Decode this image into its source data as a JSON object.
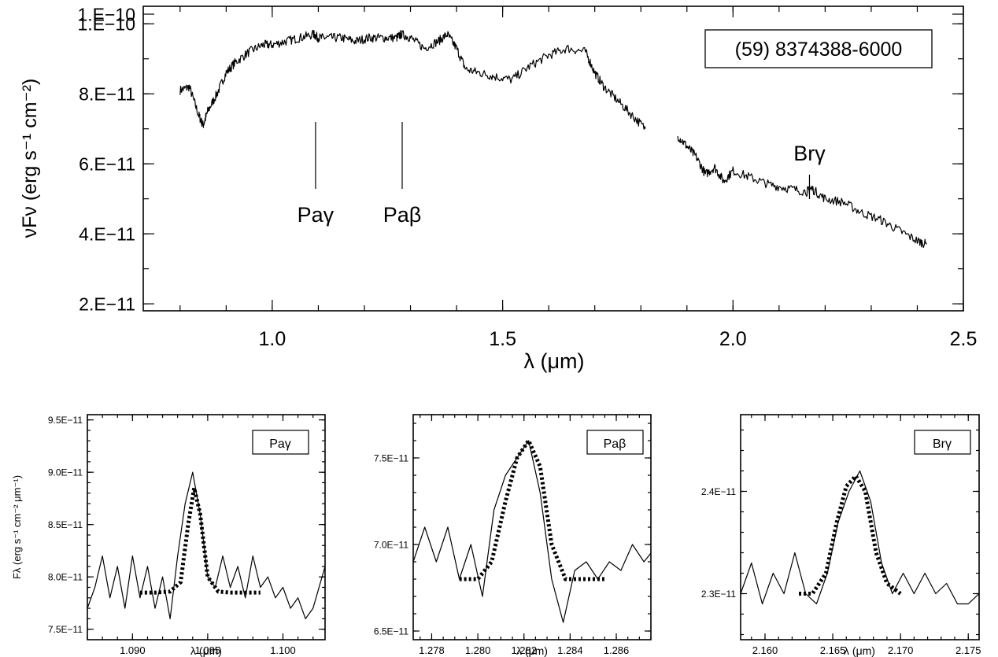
{
  "chart_data": [
    {
      "type": "line",
      "title": "",
      "legend_box": "(59) 8374388-6000",
      "legend_placement": "top-right",
      "xlabel": "λ (μm)",
      "ylabel": "νFν (erg s⁻¹ cm⁻²)",
      "xlim": [
        0.72,
        2.5
      ],
      "ylim": [
        1.8e-11,
        1.05e-10
      ],
      "xticks": [
        1.0,
        1.5,
        2.0,
        2.5
      ],
      "xtick_labels": [
        "1.0",
        "1.5",
        "2.0",
        "2.5"
      ],
      "yticks": [
        2e-11,
        4e-11,
        6e-11,
        8e-11,
        1e-10,
        1.2e-10
      ],
      "ytick_labels": [
        "2.E−11",
        "4.E−11",
        "6.E−11",
        "8.E−11",
        "1.E−10",
        "1.E−10"
      ],
      "annotations": [
        {
          "label": "Paγ",
          "x": 1.094
        },
        {
          "label": "Paβ",
          "x": 1.282
        },
        {
          "label": "Brγ",
          "x": 2.166
        }
      ],
      "series": [
        {
          "segments": [
            {
              "x": [
                0.8,
                0.82,
                0.84,
                0.85,
                0.86,
                0.88,
                0.9,
                0.92,
                0.95,
                0.98,
                1.0,
                1.03,
                1.06,
                1.09,
                1.1,
                1.12,
                1.15,
                1.18,
                1.21,
                1.24,
                1.27,
                1.28,
                1.3,
                1.33,
                1.36,
                1.38,
                1.4,
                1.42,
                1.45,
                1.48,
                1.52,
                1.56,
                1.6,
                1.64,
                1.68,
                1.7,
                1.72,
                1.75,
                1.78,
                1.81
              ],
              "y": [
                8.1e-11,
                8.2e-11,
                7.4e-11,
                7.1e-11,
                7.5e-11,
                8e-11,
                8.6e-11,
                8.9e-11,
                9.2e-11,
                9.4e-11,
                9.4e-11,
                9.5e-11,
                9.6e-11,
                9.7e-11,
                9.6e-11,
                9.6e-11,
                9.6e-11,
                9.5e-11,
                9.6e-11,
                9.6e-11,
                9.6e-11,
                9.7e-11,
                9.6e-11,
                9.3e-11,
                9.5e-11,
                9.7e-11,
                9.3e-11,
                8.7e-11,
                8.6e-11,
                8.5e-11,
                8.4e-11,
                8.8e-11,
                9.1e-11,
                9.3e-11,
                9.2e-11,
                8.6e-11,
                8.2e-11,
                7.8e-11,
                7.4e-11,
                7e-11
              ]
            },
            {
              "x": [
                1.88,
                1.9,
                1.92,
                1.94,
                1.96,
                1.98,
                2.0,
                2.04,
                2.08,
                2.12,
                2.16,
                2.17,
                2.2,
                2.24,
                2.28,
                2.32,
                2.36,
                2.4,
                2.42
              ],
              "y": [
                6.8e-11,
                6.5e-11,
                6.2e-11,
                5.7e-11,
                5.9e-11,
                5.5e-11,
                5.8e-11,
                5.6e-11,
                5.4e-11,
                5.3e-11,
                5.2e-11,
                5.3e-11,
                5e-11,
                4.9e-11,
                4.6e-11,
                4.4e-11,
                4.1e-11,
                3.8e-11,
                3.7e-11
              ]
            }
          ]
        }
      ]
    },
    {
      "type": "line",
      "label": "Paγ",
      "legend_placement": "top-right",
      "xlabel": "λ (μm)",
      "ylabel": "Fλ (erg s⁻¹ cm⁻² μm⁻¹)",
      "xlim": [
        1.087,
        1.1028
      ],
      "ylim": [
        7.4e-11,
        9.55e-11
      ],
      "xticks": [
        1.09,
        1.095,
        1.1
      ],
      "xtick_labels": [
        "1.090",
        "1.095",
        "1.100"
      ],
      "yticks": [
        7.5e-11,
        8e-11,
        8.5e-11,
        9e-11,
        9.5e-11
      ],
      "ytick_labels": [
        "7.5E−11",
        "8.0E−11",
        "8.5E−11",
        "9.0E−11",
        "9.5E−11"
      ],
      "series": [
        {
          "style": "solid",
          "x": [
            1.087,
            1.0875,
            1.088,
            1.0885,
            1.089,
            1.0895,
            1.09,
            1.0905,
            1.091,
            1.0915,
            1.092,
            1.0925,
            1.093,
            1.0935,
            1.094,
            1.0945,
            1.095,
            1.0955,
            1.096,
            1.0965,
            1.097,
            1.0975,
            1.098,
            1.0985,
            1.099,
            1.0995,
            1.1,
            1.1005,
            1.101,
            1.1015,
            1.102,
            1.1028
          ],
          "y": [
            7.7e-11,
            7.9e-11,
            8.2e-11,
            7.8e-11,
            8.1e-11,
            7.7e-11,
            8.2e-11,
            7.8e-11,
            8.1e-11,
            7.7e-11,
            8e-11,
            7.6e-11,
            8.2e-11,
            8.7e-11,
            9e-11,
            8.6e-11,
            8e-11,
            7.9e-11,
            8.2e-11,
            7.9e-11,
            8.1e-11,
            7.8e-11,
            8.2e-11,
            7.9e-11,
            8e-11,
            7.8e-11,
            7.9e-11,
            7.7e-11,
            7.8e-11,
            7.6e-11,
            7.7e-11,
            8.1e-11
          ]
        },
        {
          "style": "dotted",
          "x": [
            1.0905,
            1.0915,
            1.0925,
            1.0932,
            1.0937,
            1.0941,
            1.0945,
            1.095,
            1.0957,
            1.0965,
            1.0975,
            1.0985
          ],
          "y": [
            7.85e-11,
            7.85e-11,
            7.86e-11,
            7.95e-11,
            8.5e-11,
            8.85e-11,
            8.6e-11,
            8e-11,
            7.86e-11,
            7.85e-11,
            7.85e-11,
            7.85e-11
          ]
        }
      ]
    },
    {
      "type": "line",
      "label": "Paβ",
      "legend_placement": "top-right",
      "xlabel": "λ (μm)",
      "xlim": [
        1.2772,
        1.2875
      ],
      "ylim": [
        6.45e-11,
        7.75e-11
      ],
      "xticks": [
        1.278,
        1.28,
        1.282,
        1.284,
        1.286
      ],
      "xtick_labels": [
        "1.278",
        "1.280",
        "1.282",
        "1.284",
        "1.286"
      ],
      "yticks": [
        6.5e-11,
        7e-11,
        7.5e-11
      ],
      "ytick_labels": [
        "6.5E−11",
        "7.0E−11",
        "7.5E−11"
      ],
      "series": [
        {
          "style": "solid",
          "x": [
            1.2772,
            1.2777,
            1.2782,
            1.2787,
            1.2792,
            1.2797,
            1.2802,
            1.2807,
            1.2812,
            1.2817,
            1.2822,
            1.2827,
            1.2832,
            1.2837,
            1.2842,
            1.2847,
            1.2852,
            1.2857,
            1.2862,
            1.2867,
            1.2872,
            1.2875
          ],
          "y": [
            6.9e-11,
            7.1e-11,
            6.9e-11,
            7.1e-11,
            6.8e-11,
            7e-11,
            6.7e-11,
            7.2e-11,
            7.4e-11,
            7.5e-11,
            7.6e-11,
            7.3e-11,
            6.8e-11,
            6.55e-11,
            6.85e-11,
            6.9e-11,
            6.8e-11,
            6.9e-11,
            6.85e-11,
            7e-11,
            6.9e-11,
            6.95e-11
          ]
        },
        {
          "style": "dotted",
          "x": [
            1.2792,
            1.28,
            1.2806,
            1.2812,
            1.2817,
            1.2822,
            1.2827,
            1.2832,
            1.2838,
            1.2845,
            1.2855
          ],
          "y": [
            6.8e-11,
            6.8e-11,
            6.9e-11,
            7.25e-11,
            7.5e-11,
            7.6e-11,
            7.45e-11,
            7e-11,
            6.8e-11,
            6.8e-11,
            6.8e-11
          ]
        }
      ]
    },
    {
      "type": "line",
      "label": "Brγ",
      "legend_placement": "top-right",
      "xlabel": "λ (μm)",
      "xlim": [
        2.1582,
        2.1758
      ],
      "ylim": [
        2.255e-11,
        2.475e-11
      ],
      "xticks": [
        2.16,
        2.165,
        2.17,
        2.175
      ],
      "xtick_labels": [
        "2.160",
        "2.165",
        "2.170",
        "2.175"
      ],
      "yticks": [
        2.3e-11,
        2.4e-11
      ],
      "ytick_labels": [
        "2.3E−11",
        "2.4E−11"
      ],
      "series": [
        {
          "style": "solid",
          "x": [
            2.1582,
            2.159,
            2.1598,
            2.1606,
            2.1614,
            2.1622,
            2.163,
            2.1638,
            2.1646,
            2.1654,
            2.1662,
            2.167,
            2.1678,
            2.1686,
            2.1694,
            2.1702,
            2.171,
            2.1718,
            2.1726,
            2.1734,
            2.1742,
            2.175,
            2.1758
          ],
          "y": [
            2.3e-11,
            2.33e-11,
            2.29e-11,
            2.32e-11,
            2.3e-11,
            2.34e-11,
            2.3e-11,
            2.29e-11,
            2.32e-11,
            2.37e-11,
            2.4e-11,
            2.42e-11,
            2.39e-11,
            2.33e-11,
            2.3e-11,
            2.32e-11,
            2.3e-11,
            2.32e-11,
            2.3e-11,
            2.31e-11,
            2.29e-11,
            2.29e-11,
            2.3e-11
          ]
        },
        {
          "style": "dotted",
          "x": [
            2.1625,
            2.1635,
            2.1645,
            2.1653,
            2.166,
            2.1667,
            2.1674,
            2.1682,
            2.169,
            2.17
          ],
          "y": [
            2.3e-11,
            2.3e-11,
            2.32e-11,
            2.37e-11,
            2.405e-11,
            2.415e-11,
            2.4e-11,
            2.34e-11,
            2.31e-11,
            2.3e-11
          ]
        }
      ]
    }
  ]
}
